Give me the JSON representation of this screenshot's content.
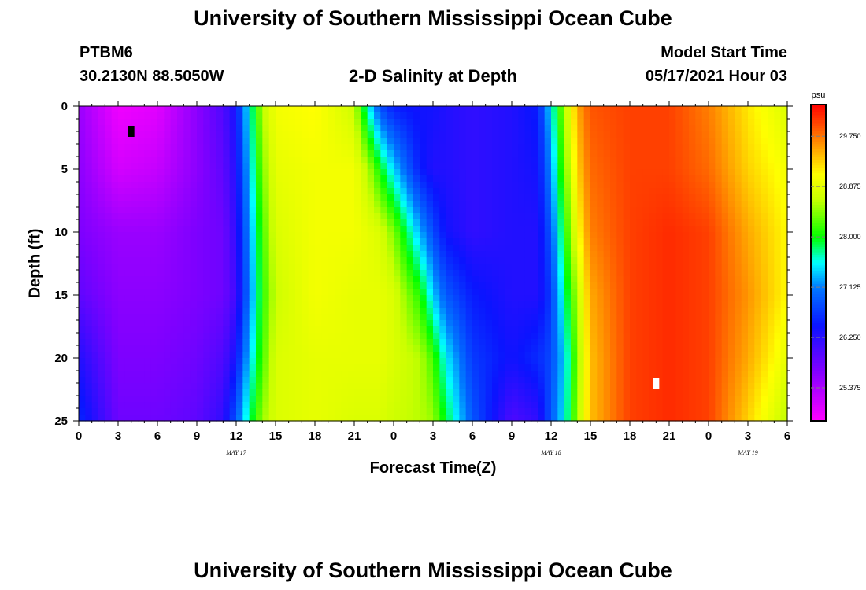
{
  "header": {
    "title_top": "University of Southern Mississippi Ocean Cube",
    "station_id": "PTBM6",
    "station_coords": "30.2130N  88.5050W",
    "plot_title": "2-D Salinity at Depth",
    "model_start_label": "Model Start Time",
    "model_start_value": "05/17/2021 Hour 03",
    "title_bottom": "University of Southern Mississippi Ocean Cube"
  },
  "chart_data": {
    "type": "heatmap",
    "title": "2-D Salinity at Depth",
    "xlabel": "Forecast Time(Z)",
    "ylabel": "Depth (ft)",
    "x_tick_labels": [
      "0",
      "3",
      "6",
      "9",
      "12",
      "15",
      "18",
      "21",
      "0",
      "3",
      "6",
      "9",
      "12",
      "15",
      "18",
      "21",
      "0",
      "3",
      "6"
    ],
    "x_hours_range": [
      0,
      54
    ],
    "date_labels": [
      {
        "label": "MAY 17",
        "hour": 12
      },
      {
        "label": "MAY 18",
        "hour": 36
      },
      {
        "label": "MAY 19",
        "hour": 51
      }
    ],
    "y_tick_labels": [
      "0",
      "5",
      "10",
      "15",
      "20",
      "25"
    ],
    "ylim": [
      0,
      25
    ],
    "colorbar": {
      "unit": "psu",
      "range": [
        24.8,
        30.3
      ],
      "tick_labels": [
        "29.750",
        "28.875",
        "28.000",
        "27.125",
        "26.250",
        "25.375"
      ],
      "tick_values": [
        29.75,
        28.875,
        28.0,
        27.125,
        26.25,
        25.375
      ]
    },
    "salinity_profiles": [
      {
        "hour": 0,
        "depth_ft": [
          0,
          5,
          10,
          15,
          20,
          25
        ],
        "psu": [
          25.5,
          25.6,
          25.7,
          25.9,
          26.3,
          26.6
        ]
      },
      {
        "hour": 3,
        "depth_ft": [
          0,
          5,
          10,
          15,
          20,
          25
        ],
        "psu": [
          24.9,
          25.1,
          25.5,
          25.6,
          25.7,
          25.8
        ]
      },
      {
        "hour": 6,
        "depth_ft": [
          0,
          5,
          10,
          15,
          20,
          25
        ],
        "psu": [
          25.0,
          25.2,
          25.5,
          25.6,
          25.7,
          25.8
        ]
      },
      {
        "hour": 9,
        "depth_ft": [
          0,
          5,
          10,
          15,
          20,
          25
        ],
        "psu": [
          25.6,
          25.6,
          25.7,
          25.7,
          25.8,
          25.9
        ]
      },
      {
        "hour": 11,
        "depth_ft": [
          0,
          5,
          10,
          15,
          20,
          25
        ],
        "psu": [
          26.0,
          25.9,
          25.8,
          25.8,
          26.0,
          26.2
        ]
      },
      {
        "hour": 12,
        "depth_ft": [
          0,
          5,
          10,
          15,
          20,
          25
        ],
        "psu": [
          26.4,
          26.3,
          26.2,
          26.1,
          26.4,
          26.9
        ]
      },
      {
        "hour": 13,
        "depth_ft": [
          0,
          5,
          10,
          15,
          20,
          25
        ],
        "psu": [
          27.6,
          27.4,
          27.2,
          27.1,
          27.4,
          27.8
        ]
      },
      {
        "hour": 14,
        "depth_ft": [
          0,
          5,
          10,
          15,
          20,
          25
        ],
        "psu": [
          28.6,
          28.4,
          28.2,
          28.1,
          28.2,
          28.5
        ]
      },
      {
        "hour": 15,
        "depth_ft": [
          0,
          5,
          10,
          15,
          20,
          25
        ],
        "psu": [
          29.0,
          28.9,
          28.8,
          28.7,
          28.8,
          28.8
        ]
      },
      {
        "hour": 18,
        "depth_ft": [
          0,
          5,
          10,
          15,
          20,
          25
        ],
        "psu": [
          29.1,
          29.0,
          29.0,
          29.0,
          28.9,
          28.9
        ]
      },
      {
        "hour": 21,
        "depth_ft": [
          0,
          5,
          10,
          15,
          20,
          25
        ],
        "psu": [
          28.7,
          29.0,
          29.0,
          28.9,
          28.9,
          28.8
        ]
      },
      {
        "hour": 22,
        "depth_ft": [
          0,
          5,
          10,
          15,
          20,
          25
        ],
        "psu": [
          27.6,
          28.6,
          28.9,
          28.9,
          28.9,
          28.8
        ]
      },
      {
        "hour": 23,
        "depth_ft": [
          0,
          5,
          10,
          15,
          20,
          25
        ],
        "psu": [
          26.8,
          28.0,
          28.8,
          28.9,
          28.9,
          28.8
        ]
      },
      {
        "hour": 24,
        "depth_ft": [
          0,
          5,
          10,
          15,
          20,
          25
        ],
        "psu": [
          26.5,
          27.4,
          28.4,
          28.8,
          28.8,
          28.7
        ]
      },
      {
        "hour": 26,
        "depth_ft": [
          0,
          5,
          10,
          15,
          20,
          25
        ],
        "psu": [
          26.4,
          26.5,
          27.3,
          28.1,
          28.6,
          28.6
        ]
      },
      {
        "hour": 27,
        "depth_ft": [
          0,
          5,
          10,
          15,
          20,
          25
        ],
        "psu": [
          26.4,
          26.3,
          26.8,
          27.4,
          28.2,
          28.5
        ]
      },
      {
        "hour": 28,
        "depth_ft": [
          0,
          5,
          10,
          15,
          20,
          25
        ],
        "psu": [
          26.3,
          26.3,
          26.4,
          26.9,
          27.5,
          27.9
        ]
      },
      {
        "hour": 30,
        "depth_ft": [
          0,
          5,
          10,
          15,
          20,
          25
        ],
        "psu": [
          26.2,
          26.2,
          26.2,
          26.5,
          26.7,
          26.9
        ]
      },
      {
        "hour": 33,
        "depth_ft": [
          0,
          5,
          10,
          15,
          20,
          25
        ],
        "psu": [
          26.3,
          26.3,
          26.3,
          26.3,
          26.4,
          26.0
        ]
      },
      {
        "hour": 35,
        "depth_ft": [
          0,
          5,
          10,
          15,
          20,
          25
        ],
        "psu": [
          26.5,
          26.4,
          26.3,
          26.3,
          26.6,
          26.2
        ]
      },
      {
        "hour": 36,
        "depth_ft": [
          0,
          5,
          10,
          15,
          20,
          25
        ],
        "psu": [
          27.5,
          27.2,
          26.9,
          26.7,
          26.8,
          26.9
        ]
      },
      {
        "hour": 37,
        "depth_ft": [
          0,
          5,
          10,
          15,
          20,
          25
        ],
        "psu": [
          28.5,
          28.3,
          28.0,
          27.7,
          27.4,
          27.5
        ]
      },
      {
        "hour": 38,
        "depth_ft": [
          0,
          5,
          10,
          15,
          20,
          25
        ],
        "psu": [
          29.5,
          29.3,
          29.0,
          28.6,
          28.4,
          28.5
        ]
      },
      {
        "hour": 39,
        "depth_ft": [
          0,
          5,
          10,
          15,
          20,
          25
        ],
        "psu": [
          29.9,
          29.8,
          29.7,
          29.5,
          29.4,
          29.4
        ]
      },
      {
        "hour": 42,
        "depth_ft": [
          0,
          5,
          10,
          15,
          20,
          25
        ],
        "psu": [
          30.0,
          30.0,
          30.0,
          30.0,
          30.0,
          30.0
        ]
      },
      {
        "hour": 45,
        "depth_ft": [
          0,
          5,
          10,
          15,
          20,
          25
        ],
        "psu": [
          30.0,
          30.0,
          30.1,
          30.1,
          30.1,
          30.1
        ]
      },
      {
        "hour": 48,
        "depth_ft": [
          0,
          5,
          10,
          15,
          20,
          25
        ],
        "psu": [
          29.7,
          29.8,
          30.0,
          30.0,
          30.0,
          30.0
        ]
      },
      {
        "hour": 51,
        "depth_ft": [
          0,
          5,
          10,
          15,
          20,
          25
        ],
        "psu": [
          29.2,
          29.3,
          29.5,
          29.6,
          29.5,
          29.3
        ]
      },
      {
        "hour": 54,
        "depth_ft": [
          0,
          5,
          10,
          15,
          20,
          25
        ],
        "psu": [
          28.8,
          29.0,
          29.1,
          29.1,
          28.9,
          28.6
        ]
      }
    ],
    "markers": [
      {
        "name": "min",
        "color": "#000000",
        "hour": 4,
        "depth_ft": 2
      },
      {
        "name": "max",
        "color": "#ffffff",
        "hour": 44,
        "depth_ft": 22
      }
    ]
  }
}
